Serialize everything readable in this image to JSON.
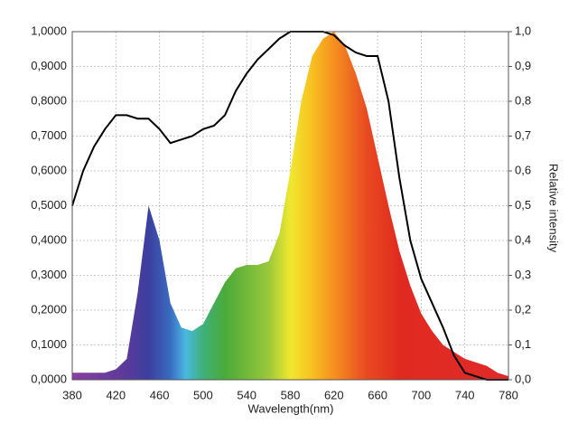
{
  "chart_data": {
    "type": "area",
    "xlabel": "Wavelength(nm)",
    "y2label": "Relative intensity",
    "x": [
      380,
      390,
      400,
      410,
      420,
      430,
      440,
      450,
      460,
      470,
      480,
      490,
      500,
      510,
      520,
      530,
      540,
      550,
      560,
      570,
      580,
      590,
      600,
      610,
      620,
      630,
      640,
      650,
      660,
      670,
      680,
      690,
      700,
      710,
      720,
      730,
      740,
      750,
      760,
      770,
      780
    ],
    "series": [
      {
        "type": "area",
        "values": [
          0.02,
          0.02,
          0.02,
          0.02,
          0.03,
          0.06,
          0.25,
          0.5,
          0.4,
          0.22,
          0.15,
          0.14,
          0.16,
          0.22,
          0.28,
          0.32,
          0.33,
          0.33,
          0.34,
          0.42,
          0.6,
          0.8,
          0.93,
          0.98,
          1.0,
          0.96,
          0.88,
          0.78,
          0.64,
          0.5,
          0.37,
          0.27,
          0.19,
          0.14,
          0.1,
          0.08,
          0.06,
          0.05,
          0.04,
          0.02,
          0.01
        ]
      },
      {
        "type": "line",
        "axis": "y2",
        "color": "#000000",
        "values": [
          0.5,
          0.6,
          0.67,
          0.72,
          0.76,
          0.76,
          0.75,
          0.75,
          0.72,
          0.68,
          0.69,
          0.7,
          0.72,
          0.73,
          0.76,
          0.83,
          0.88,
          0.92,
          0.95,
          0.98,
          1.0,
          1.0,
          1.0,
          1.0,
          0.99,
          0.96,
          0.94,
          0.93,
          0.93,
          0.8,
          0.58,
          0.4,
          0.29,
          0.22,
          0.15,
          0.07,
          0.02,
          0.01,
          0.0,
          0.0,
          0.0
        ]
      }
    ],
    "xlim": [
      380,
      780
    ],
    "xticks": [
      380,
      420,
      460,
      500,
      540,
      580,
      620,
      660,
      700,
      740,
      780
    ],
    "ylim": [
      0,
      1
    ],
    "yticks": [
      {
        "value": 0,
        "label": "0,0000"
      },
      {
        "value": 0.1,
        "label": "0,1000"
      },
      {
        "value": 0.2,
        "label": "0,2000"
      },
      {
        "value": 0.3,
        "label": "0,3000"
      },
      {
        "value": 0.4,
        "label": "0,4000"
      },
      {
        "value": 0.5,
        "label": "0,5000"
      },
      {
        "value": 0.6,
        "label": "0,6000"
      },
      {
        "value": 0.7,
        "label": "0,7000"
      },
      {
        "value": 0.8,
        "label": "0,8000"
      },
      {
        "value": 0.9,
        "label": "0,9000"
      },
      {
        "value": 1,
        "label": "1,0000"
      }
    ],
    "y2lim": [
      0,
      1
    ],
    "y2ticks": [
      {
        "value": 0,
        "label": "0,0"
      },
      {
        "value": 0.1,
        "label": "0,1"
      },
      {
        "value": 0.2,
        "label": "0,2"
      },
      {
        "value": 0.3,
        "label": "0,3"
      },
      {
        "value": 0.4,
        "label": "0,4"
      },
      {
        "value": 0.5,
        "label": "0,5"
      },
      {
        "value": 0.6,
        "label": "0,6"
      },
      {
        "value": 0.7,
        "label": "0,7"
      },
      {
        "value": 0.8,
        "label": "0,8"
      },
      {
        "value": 0.9,
        "label": "0,9"
      },
      {
        "value": 1,
        "label": "1,0"
      }
    ],
    "grid": true
  }
}
